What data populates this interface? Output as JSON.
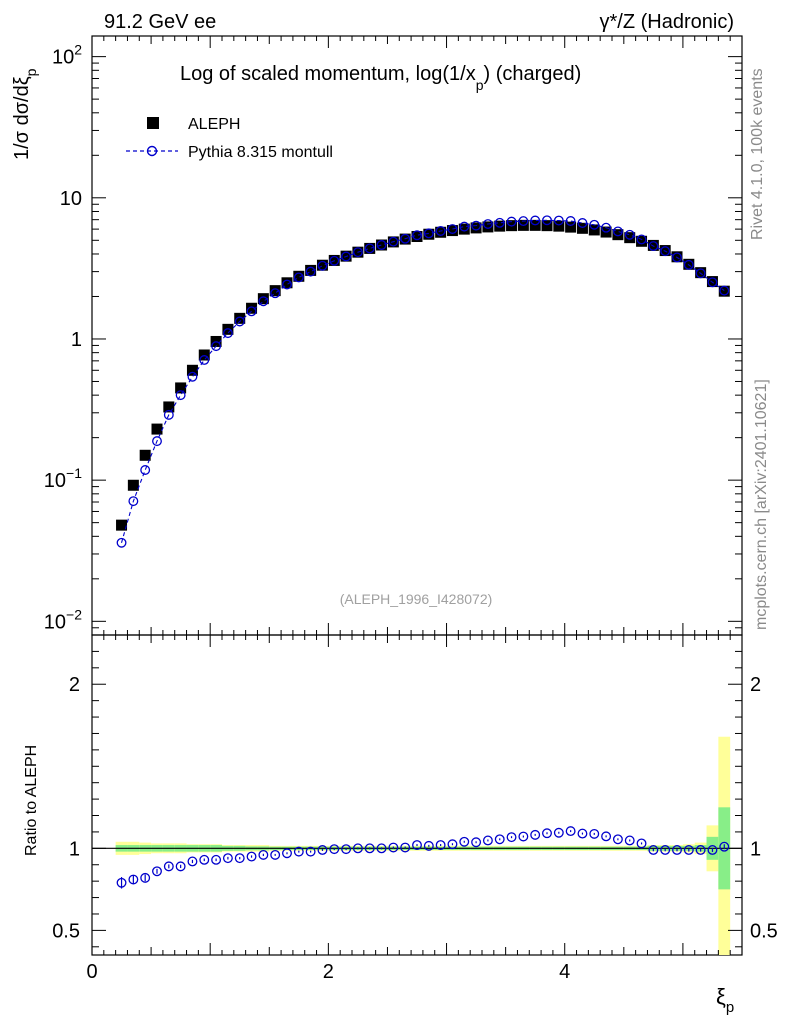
{
  "header": {
    "left": "91.2 GeV ee",
    "right": "γ*/Z (Hadronic)"
  },
  "side": {
    "top": "Rivet 4.1.0,  100k events",
    "bottom": "mcplots.cern.ch [arXiv:2401.10621]"
  },
  "chart_data": {
    "type": "scatter",
    "title": "Log of scaled momentum, log(1/x",
    "title_sub": "p",
    "title_tail": ") (charged)",
    "ref_id": "(ALEPH_1996_I428072)",
    "ylabel": "1/σ  dσ/dξ",
    "ylabel_sub": "p",
    "xlabel": "ξ",
    "xlabel_sub": "p",
    "ratio_ylabel": "Ratio to ALEPH",
    "xlim": [
      0,
      5.5
    ],
    "ylim": [
      0.008,
      140
    ],
    "ratio_ylim": [
      0.35,
      2.3
    ],
    "x_ticks": [
      "0",
      "2",
      "4"
    ],
    "y_tick_labels": [
      {
        "value": 0.01,
        "base": "10",
        "exp": "−2"
      },
      {
        "value": 0.1,
        "base": "10",
        "exp": "−1"
      },
      {
        "value": 1,
        "base": "1",
        "exp": ""
      },
      {
        "value": 10,
        "base": "10",
        "exp": ""
      },
      {
        "value": 100,
        "base": "10",
        "exp": "2"
      }
    ],
    "ratio_y_ticks": [
      "0.5",
      "1",
      "2"
    ],
    "legend": [
      {
        "name": "ALEPH",
        "marker": "filled-square",
        "color": "#000000"
      },
      {
        "name": "Pythia 8.315 montull",
        "marker": "open-circle-dashed",
        "color": "#0000cc"
      }
    ],
    "x": [
      0.25,
      0.35,
      0.45,
      0.55,
      0.65,
      0.75,
      0.85,
      0.95,
      1.05,
      1.15,
      1.25,
      1.35,
      1.45,
      1.55,
      1.65,
      1.75,
      1.85,
      1.95,
      2.05,
      2.15,
      2.25,
      2.35,
      2.45,
      2.55,
      2.65,
      2.75,
      2.85,
      2.95,
      3.05,
      3.15,
      3.25,
      3.35,
      3.45,
      3.55,
      3.65,
      3.75,
      3.85,
      3.95,
      4.05,
      4.15,
      4.25,
      4.35,
      4.45,
      4.55,
      4.65,
      4.75,
      4.85,
      4.95,
      5.05,
      5.15,
      5.25,
      5.35
    ],
    "series": [
      {
        "name": "ALEPH",
        "values": [
          0.048,
          0.092,
          0.15,
          0.23,
          0.33,
          0.45,
          0.6,
          0.77,
          0.96,
          1.17,
          1.4,
          1.65,
          1.93,
          2.2,
          2.5,
          2.78,
          3.06,
          3.33,
          3.6,
          3.86,
          4.12,
          4.38,
          4.63,
          4.87,
          5.1,
          5.32,
          5.52,
          5.7,
          5.86,
          6.0,
          6.12,
          6.22,
          6.3,
          6.35,
          6.38,
          6.38,
          6.35,
          6.3,
          6.2,
          6.08,
          5.92,
          5.72,
          5.48,
          5.22,
          4.92,
          4.6,
          4.23,
          3.82,
          3.38,
          2.95,
          2.55,
          2.18
        ]
      },
      {
        "name": "Pythia 8.315 montull",
        "values": [
          0.036,
          0.071,
          0.118,
          0.189,
          0.29,
          0.4,
          0.54,
          0.71,
          0.89,
          1.1,
          1.33,
          1.57,
          1.85,
          2.11,
          2.43,
          2.73,
          3.0,
          3.3,
          3.58,
          3.84,
          4.12,
          4.38,
          4.63,
          4.89,
          5.13,
          5.43,
          5.6,
          5.82,
          6.01,
          6.25,
          6.35,
          6.52,
          6.65,
          6.78,
          6.84,
          6.91,
          6.93,
          6.9,
          6.85,
          6.63,
          6.44,
          6.14,
          5.78,
          5.47,
          5.07,
          4.55,
          4.19,
          3.78,
          3.35,
          2.92,
          2.52,
          2.2
        ]
      }
    ],
    "ratio": [
      0.79,
      0.81,
      0.82,
      0.86,
      0.89,
      0.89,
      0.92,
      0.93,
      0.93,
      0.94,
      0.94,
      0.95,
      0.96,
      0.96,
      0.97,
      0.98,
      0.98,
      0.99,
      0.995,
      0.995,
      1.0,
      1.0,
      1.0,
      1.005,
      1.005,
      1.02,
      1.015,
      1.02,
      1.025,
      1.04,
      1.037,
      1.048,
      1.055,
      1.068,
      1.072,
      1.082,
      1.092,
      1.095,
      1.105,
      1.09,
      1.088,
      1.073,
      1.055,
      1.048,
      1.03,
      0.99,
      0.99,
      0.99,
      0.99,
      0.99,
      0.99,
      1.01
    ],
    "ratio_errors": [
      0.035,
      0.025,
      0.02,
      0.015,
      0.012,
      0.01,
      0.01,
      0.008,
      0.008,
      0.008,
      0.007,
      0.007,
      0.007,
      0.006,
      0.006,
      0.006,
      0.006,
      0.006,
      0.006,
      0.006,
      0.006,
      0.006,
      0.006,
      0.006,
      0.006,
      0.006,
      0.006,
      0.006,
      0.006,
      0.006,
      0.006,
      0.006,
      0.006,
      0.006,
      0.006,
      0.006,
      0.006,
      0.006,
      0.006,
      0.006,
      0.006,
      0.006,
      0.006,
      0.006,
      0.006,
      0.008,
      0.008,
      0.008,
      0.01,
      0.01,
      0.012,
      0.015
    ],
    "band_stat": [
      0.02,
      0.02,
      0.02,
      0.02,
      0.02,
      0.02,
      0.02,
      0.02,
      0.02,
      0.015,
      0.015,
      0.012,
      0.012,
      0.01,
      0.01,
      0.01,
      0.01,
      0.01,
      0.01,
      0.01,
      0.01,
      0.01,
      0.01,
      0.01,
      0.01,
      0.01,
      0.01,
      0.01,
      0.01,
      0.01,
      0.01,
      0.01,
      0.01,
      0.01,
      0.01,
      0.01,
      0.01,
      0.01,
      0.01,
      0.01,
      0.01,
      0.01,
      0.01,
      0.01,
      0.01,
      0.015,
      0.015,
      0.015,
      0.015,
      0.02,
      0.07,
      0.25
    ],
    "band_total": [
      0.04,
      0.04,
      0.035,
      0.03,
      0.03,
      0.03,
      0.025,
      0.025,
      0.025,
      0.02,
      0.02,
      0.02,
      0.02,
      0.015,
      0.015,
      0.015,
      0.015,
      0.015,
      0.015,
      0.015,
      0.015,
      0.015,
      0.015,
      0.015,
      0.015,
      0.015,
      0.015,
      0.015,
      0.015,
      0.015,
      0.015,
      0.015,
      0.015,
      0.015,
      0.015,
      0.015,
      0.015,
      0.015,
      0.015,
      0.015,
      0.015,
      0.015,
      0.015,
      0.015,
      0.015,
      0.02,
      0.02,
      0.02,
      0.025,
      0.035,
      0.14,
      0.68
    ]
  }
}
